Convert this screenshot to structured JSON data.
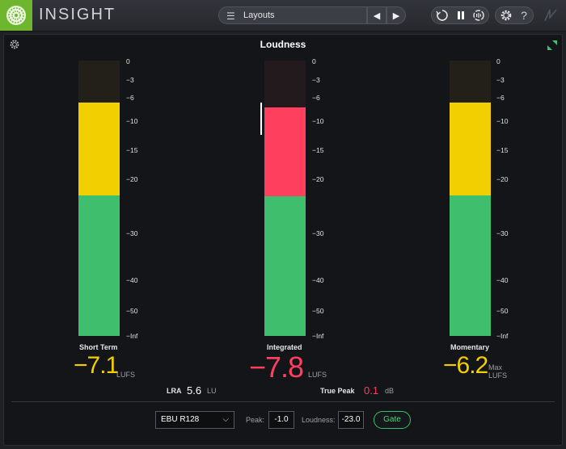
{
  "app": {
    "title": "INSIGHT"
  },
  "header": {
    "layouts_label": "Layouts",
    "help_label": "?"
  },
  "panel": {
    "title": "Loudness"
  },
  "scale_ticks": [
    "0",
    "−3",
    "−6",
    "−10",
    "−15",
    "−20",
    "−30",
    "−40",
    "−50",
    "−Inf"
  ],
  "meters": {
    "short_term": {
      "label": "Short Term",
      "value": "−7.1",
      "unit": "LUFS",
      "color": "#f2cf00"
    },
    "integrated": {
      "label": "Integrated",
      "value": "−7.8",
      "unit": "LUFS",
      "color": "#ff3f5e"
    },
    "momentary": {
      "label": "Momentary",
      "value": "−6.2",
      "max_label": "Max",
      "unit": "LUFS",
      "color": "#f2cf00"
    }
  },
  "stats": {
    "lra_label": "LRA",
    "lra_value": "5.6",
    "lra_unit": "LU",
    "true_peak_label": "True Peak",
    "true_peak_value": "0.1",
    "true_peak_unit": "dB"
  },
  "controls": {
    "standard": "EBU R128",
    "peak_label": "Peak:",
    "peak_value": "-1.0",
    "loudness_label": "Loudness:",
    "loudness_value": "-23.0",
    "gate_label": "Gate"
  },
  "colors": {
    "green": "#3fbf6e",
    "yellow": "#f2cf00",
    "red": "#ff3f5e",
    "accent": "#6fb62f"
  }
}
